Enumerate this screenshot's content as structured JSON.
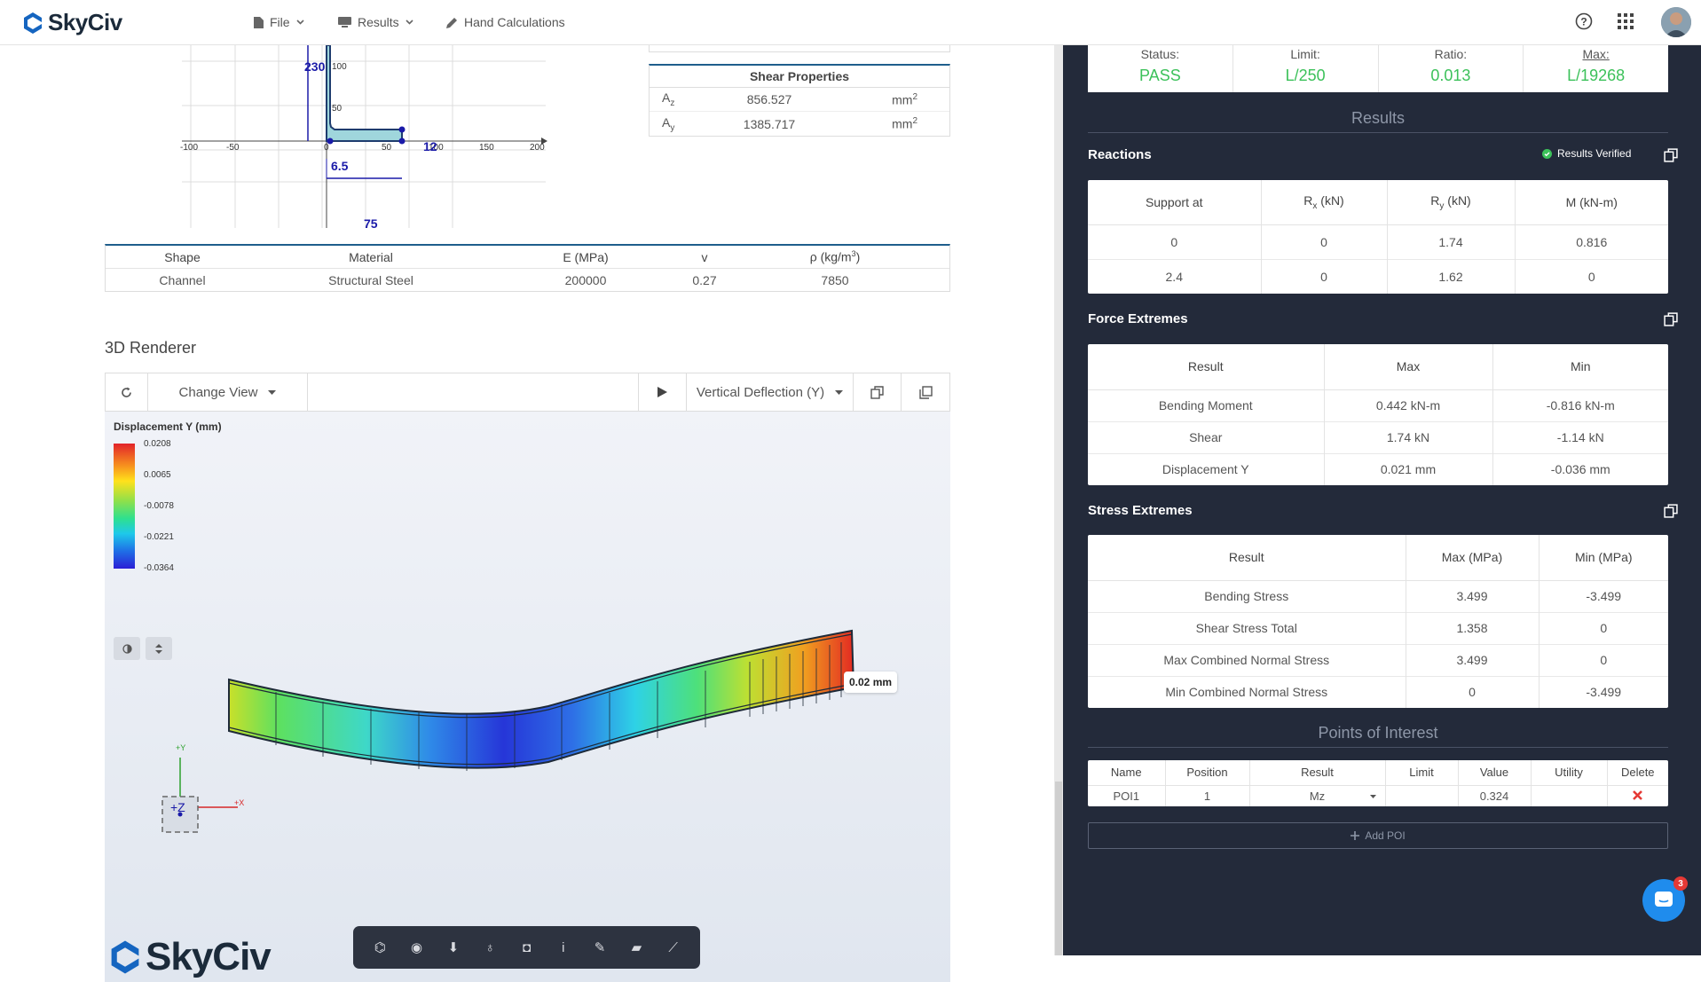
{
  "app": {
    "name": "SkyCiv"
  },
  "topbar": {
    "menu": [
      {
        "label": "File",
        "icon": "file-icon"
      },
      {
        "label": "Results",
        "icon": "monitor-icon"
      },
      {
        "label": "Hand Calculations",
        "icon": "pencil-icon"
      }
    ],
    "badge_count": "3"
  },
  "section_plot": {
    "labels": {
      "dim_230": "230",
      "dim_12": "12",
      "dim_65": "6.5",
      "dim_75": "75"
    },
    "x_ticks": [
      "-100",
      "-50",
      "0",
      "50",
      "100",
      "150",
      "200"
    ],
    "y_ticks": [
      "100",
      "50"
    ]
  },
  "shear_properties": {
    "title": "Shear Properties",
    "rows": [
      {
        "sym": "A",
        "sub": "z",
        "value": "856.527",
        "unit": "mm",
        "sup": "2"
      },
      {
        "sym": "A",
        "sub": "y",
        "value": "1385.717",
        "unit": "mm",
        "sup": "2"
      }
    ]
  },
  "material_table": {
    "headers": [
      "Shape",
      "Material",
      "E (MPa)",
      "v",
      "ρ (kg/m",
      "3",
      ")"
    ],
    "row": [
      "Channel",
      "Structural Steel",
      "200000",
      "0.27",
      "7850"
    ]
  },
  "renderer": {
    "title": "3D Renderer",
    "change_view": "Change View",
    "result_select": "Vertical Deflection (Y)",
    "legend_title": "Displacement Y (mm)",
    "legend_values": [
      "0.0208",
      "0.0065",
      "-0.0078",
      "-0.0221",
      "-0.0364"
    ],
    "tag": "0.02 mm",
    "axis": {
      "y": "+Y",
      "x": "+X",
      "z": "+Z"
    },
    "watermark": "SkyCiv"
  },
  "deflection": {
    "headers": [
      "Status:",
      "Limit:",
      "Ratio:",
      "Max:"
    ],
    "values": [
      "PASS",
      "L/250",
      "0.013",
      "L/19268"
    ]
  },
  "results_heading": "Results",
  "reactions": {
    "title": "Reactions",
    "verified": "Results Verified",
    "headers": {
      "support": "Support at",
      "rx": "R",
      "rx_sub": "x",
      "rx_unit": " (kN)",
      "ry": "R",
      "ry_sub": "y",
      "ry_unit": " (kN)",
      "m": "M (kN-m)"
    },
    "rows": [
      [
        "0",
        "0",
        "1.74",
        "0.816"
      ],
      [
        "2.4",
        "0",
        "1.62",
        "0"
      ]
    ]
  },
  "force_extremes": {
    "title": "Force Extremes",
    "headers": [
      "Result",
      "Max",
      "Min"
    ],
    "rows": [
      [
        "Bending Moment",
        "0.442 kN-m",
        "-0.816 kN-m"
      ],
      [
        "Shear",
        "1.74 kN",
        "-1.14 kN"
      ],
      [
        "Displacement Y",
        "0.021 mm",
        "-0.036 mm"
      ]
    ]
  },
  "stress_extremes": {
    "title": "Stress Extremes",
    "headers": [
      "Result",
      "Max (MPa)",
      "Min (MPa)"
    ],
    "rows": [
      [
        "Bending Stress",
        "3.499",
        "-3.499"
      ],
      [
        "Shear Stress Total",
        "1.358",
        "0"
      ],
      [
        "Max Combined Normal Stress",
        "3.499",
        "0"
      ],
      [
        "Min Combined Normal Stress",
        "0",
        "-3.499"
      ]
    ]
  },
  "poi": {
    "title": "Points of Interest",
    "headers": [
      "Name",
      "Position",
      "Result",
      "Limit",
      "Value",
      "Utility",
      "Delete"
    ],
    "row": {
      "name": "POI1",
      "position": "1",
      "result": "Mz",
      "limit": "",
      "value": "0.324",
      "utility": ""
    },
    "add_label": "Add POI"
  },
  "colors": {
    "accent": "#1565c0",
    "pass": "#3cc15a",
    "panel_bg": "#232a3a",
    "delete": "#e53935"
  }
}
